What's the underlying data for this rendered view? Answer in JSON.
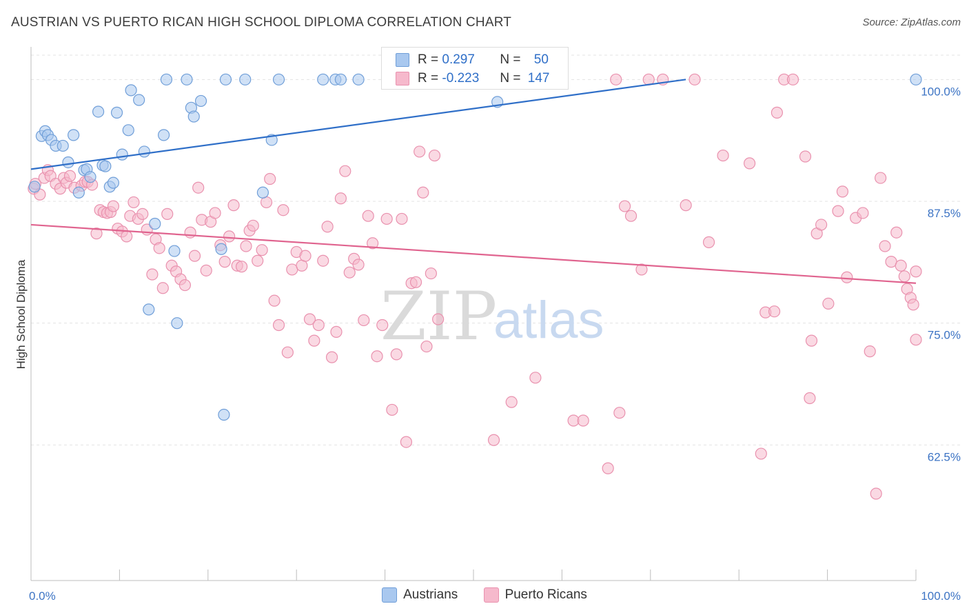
{
  "header": {
    "title": "AUSTRIAN VS PUERTO RICAN HIGH SCHOOL DIPLOMA CORRELATION CHART",
    "source": "Source: ZipAtlas.com"
  },
  "watermark": {
    "zip": "ZIP",
    "atlas": "atlas"
  },
  "stats": {
    "austrians": {
      "r_label": "R =",
      "r": "0.297",
      "n_label": "N =",
      "n": "50"
    },
    "puerto_ricans": {
      "r_label": "R =",
      "r": "-0.223",
      "n_label": "N =",
      "n": "147"
    }
  },
  "legend": {
    "austrians": "Austrians",
    "puerto_ricans": "Puerto Ricans"
  },
  "colors": {
    "austrians_fill": "#a9c8ef",
    "austrians_stroke": "#6f9ed8",
    "austrians_line": "#2f6fc8",
    "puerto_fill": "#f6b9cc",
    "puerto_stroke": "#e991ae",
    "puerto_line": "#e0648f",
    "tick_label": "#3d74c4",
    "grid": "#e3e3e3"
  },
  "chart_data": {
    "type": "scatter",
    "ylabel": "High School Diploma",
    "xlim": [
      0,
      100
    ],
    "ylim": [
      50,
      102.5
    ],
    "y_ticks": [
      {
        "value": 100,
        "label": "100.0%"
      },
      {
        "value": 87.5,
        "label": "87.5%"
      },
      {
        "value": 75,
        "label": "75.0%"
      },
      {
        "value": 62.5,
        "label": "62.5%"
      }
    ],
    "x_tick_labels": [
      {
        "value": 0,
        "label": "0.0%"
      },
      {
        "value": 100,
        "label": "100.0%"
      }
    ],
    "x_minor_ticks": [
      10,
      20,
      30,
      40,
      50,
      60,
      70,
      80,
      90
    ],
    "series": [
      {
        "name": "Austrians",
        "trend": {
          "x": [
            0,
            74
          ],
          "y": [
            90.8,
            100.0
          ]
        },
        "points": [
          [
            0.4,
            89
          ],
          [
            1.2,
            94.2
          ],
          [
            1.6,
            94.7
          ],
          [
            1.9,
            94.3
          ],
          [
            2.3,
            93.8
          ],
          [
            2.8,
            93.2
          ],
          [
            3.6,
            93.2
          ],
          [
            4.2,
            91.5
          ],
          [
            4.8,
            94.3
          ],
          [
            5.4,
            88.4
          ],
          [
            6.0,
            90.7
          ],
          [
            6.3,
            90.8
          ],
          [
            6.7,
            90
          ],
          [
            7.6,
            96.7
          ],
          [
            8.1,
            91.2
          ],
          [
            8.4,
            91.1
          ],
          [
            8.9,
            89
          ],
          [
            9.3,
            89.4
          ],
          [
            9.7,
            96.6
          ],
          [
            10.3,
            92.3
          ],
          [
            11.0,
            94.8
          ],
          [
            11.3,
            98.9
          ],
          [
            12.2,
            97.9
          ],
          [
            12.8,
            92.6
          ],
          [
            13.3,
            76.4
          ],
          [
            14.0,
            85.2
          ],
          [
            15.0,
            94.3
          ],
          [
            16.2,
            82.4
          ],
          [
            16.5,
            75.0
          ],
          [
            15.3,
            100
          ],
          [
            18.1,
            97.1
          ],
          [
            18.4,
            96.2
          ],
          [
            19.2,
            97.8
          ],
          [
            17.6,
            100
          ],
          [
            21.5,
            82.6
          ],
          [
            21.8,
            65.6
          ],
          [
            22.0,
            100
          ],
          [
            24.2,
            100
          ],
          [
            26.2,
            88.4
          ],
          [
            27.2,
            93.8
          ],
          [
            28.0,
            100
          ],
          [
            33.0,
            100
          ],
          [
            34.4,
            100
          ],
          [
            35.0,
            100
          ],
          [
            37.0,
            100
          ],
          [
            41.0,
            100
          ],
          [
            43.6,
            100
          ],
          [
            47.0,
            100
          ],
          [
            52.7,
            97.7
          ],
          [
            100,
            100
          ]
        ]
      },
      {
        "name": "Puerto Ricans",
        "trend": {
          "x": [
            0,
            100
          ],
          "y": [
            85.1,
            79.1
          ]
        },
        "points": [
          [
            0.3,
            88.8
          ],
          [
            0.5,
            89.3
          ],
          [
            1.0,
            88.2
          ],
          [
            1.5,
            89.9
          ],
          [
            1.9,
            90.7
          ],
          [
            2.2,
            90.1
          ],
          [
            2.8,
            89.3
          ],
          [
            3.3,
            88.8
          ],
          [
            3.7,
            89.9
          ],
          [
            4.0,
            89.4
          ],
          [
            4.4,
            90.1
          ],
          [
            4.9,
            88.9
          ],
          [
            5.7,
            89.1
          ],
          [
            6.1,
            89.5
          ],
          [
            6.4,
            89.5
          ],
          [
            6.9,
            89.2
          ],
          [
            7.4,
            84.2
          ],
          [
            7.8,
            86.6
          ],
          [
            8.2,
            86.4
          ],
          [
            8.6,
            86.3
          ],
          [
            9.0,
            86.4
          ],
          [
            9.3,
            87.0
          ],
          [
            9.8,
            84.7
          ],
          [
            10.3,
            84.4
          ],
          [
            10.8,
            83.9
          ],
          [
            11.2,
            86.0
          ],
          [
            11.6,
            87.4
          ],
          [
            12.1,
            85.7
          ],
          [
            12.6,
            86.2
          ],
          [
            13.1,
            84.6
          ],
          [
            13.7,
            80.0
          ],
          [
            14.1,
            83.6
          ],
          [
            14.5,
            82.7
          ],
          [
            14.9,
            78.6
          ],
          [
            15.4,
            86.2
          ],
          [
            15.9,
            80.9
          ],
          [
            16.4,
            80.3
          ],
          [
            16.9,
            79.5
          ],
          [
            17.4,
            78.9
          ],
          [
            18.0,
            84.3
          ],
          [
            18.5,
            81.9
          ],
          [
            18.9,
            88.9
          ],
          [
            19.3,
            85.6
          ],
          [
            19.8,
            80.4
          ],
          [
            20.3,
            85.4
          ],
          [
            20.8,
            86.3
          ],
          [
            21.4,
            83.0
          ],
          [
            21.9,
            81.3
          ],
          [
            22.4,
            83.9
          ],
          [
            22.9,
            87.1
          ],
          [
            23.3,
            80.9
          ],
          [
            23.8,
            80.8
          ],
          [
            24.3,
            82.9
          ],
          [
            24.7,
            84.5
          ],
          [
            25.1,
            85.0
          ],
          [
            25.6,
            81.4
          ],
          [
            26.1,
            82.5
          ],
          [
            26.6,
            87.4
          ],
          [
            27.0,
            89.8
          ],
          [
            27.5,
            77.3
          ],
          [
            28.0,
            74.8
          ],
          [
            28.5,
            86.6
          ],
          [
            29.0,
            72.0
          ],
          [
            29.5,
            80.5
          ],
          [
            30.0,
            82.3
          ],
          [
            30.6,
            80.9
          ],
          [
            31.0,
            81.9
          ],
          [
            31.5,
            75.4
          ],
          [
            32.0,
            73.2
          ],
          [
            32.5,
            74.8
          ],
          [
            33.0,
            81.4
          ],
          [
            33.5,
            84.9
          ],
          [
            34.0,
            71.5
          ],
          [
            34.5,
            74.1
          ],
          [
            35.0,
            87.8
          ],
          [
            35.5,
            90.6
          ],
          [
            36.0,
            80.2
          ],
          [
            36.5,
            81.6
          ],
          [
            37.0,
            81.0
          ],
          [
            37.6,
            75.3
          ],
          [
            38.1,
            86.0
          ],
          [
            38.6,
            83.2
          ],
          [
            39.1,
            71.6
          ],
          [
            39.7,
            74.8
          ],
          [
            40.2,
            85.7
          ],
          [
            40.8,
            66.1
          ],
          [
            41.3,
            71.8
          ],
          [
            41.9,
            85.7
          ],
          [
            42.4,
            62.8
          ],
          [
            43.0,
            79.1
          ],
          [
            43.5,
            79.2
          ],
          [
            43.9,
            92.6
          ],
          [
            44.3,
            88.4
          ],
          [
            44.7,
            72.6
          ],
          [
            45.2,
            80.1
          ],
          [
            45.6,
            92.2
          ],
          [
            46.0,
            75.4
          ],
          [
            52.3,
            63.0
          ],
          [
            54.3,
            66.9
          ],
          [
            57.0,
            69.4
          ],
          [
            61.3,
            65.0
          ],
          [
            62.4,
            65.0
          ],
          [
            65.2,
            60.1
          ],
          [
            66.5,
            65.8
          ],
          [
            67.1,
            87.0
          ],
          [
            67.8,
            86.0
          ],
          [
            69.0,
            80.5
          ],
          [
            74.0,
            87.1
          ],
          [
            76.6,
            83.3
          ],
          [
            78.2,
            92.2
          ],
          [
            81.2,
            91.4
          ],
          [
            82.5,
            61.6
          ],
          [
            83.0,
            76.1
          ],
          [
            84.0,
            76.2
          ],
          [
            84.3,
            96.6
          ],
          [
            85.1,
            100
          ],
          [
            86.1,
            100
          ],
          [
            87.5,
            92.1
          ],
          [
            88.2,
            73.2
          ],
          [
            88.8,
            84.2
          ],
          [
            89.3,
            85.1
          ],
          [
            90.1,
            77.0
          ],
          [
            91.2,
            86.5
          ],
          [
            91.7,
            88.5
          ],
          [
            92.2,
            79.7
          ],
          [
            93.2,
            85.8
          ],
          [
            94.0,
            86.3
          ],
          [
            94.8,
            72.1
          ],
          [
            95.5,
            57.5
          ],
          [
            96.0,
            89.9
          ],
          [
            96.5,
            82.9
          ],
          [
            97.2,
            81.3
          ],
          [
            97.8,
            84.3
          ],
          [
            98.3,
            80.9
          ],
          [
            98.7,
            79.8
          ],
          [
            99.0,
            78.5
          ],
          [
            99.4,
            77.6
          ],
          [
            99.7,
            76.9
          ],
          [
            100,
            73.3
          ],
          [
            88.0,
            67.3
          ],
          [
            69.8,
            100
          ],
          [
            71.4,
            100
          ],
          [
            66.1,
            100
          ],
          [
            75.0,
            100
          ],
          [
            100,
            80.3
          ]
        ]
      }
    ]
  }
}
